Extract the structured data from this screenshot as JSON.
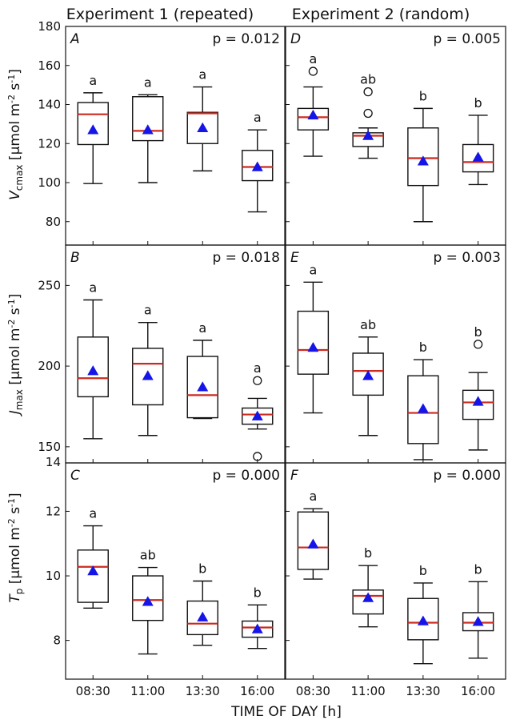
{
  "column_titles": [
    "Experiment 1 (repeated)",
    "Experiment 2 (random)"
  ],
  "x_axis_label": "TIME OF DAY [h]",
  "colors": {
    "median": "#cc2a1f",
    "mean_marker": "#1515e8",
    "box": "#111111"
  },
  "chart_data": [
    {
      "type": "box",
      "panel": "A",
      "experiment": "Experiment 1 (repeated)",
      "p_label": "p = 0.012",
      "ylabel": "Vcmax [μmol m-2 s-1]",
      "ylim": [
        68,
        180
      ],
      "yticks": [
        80,
        100,
        120,
        140,
        160,
        180
      ],
      "categories": [
        "08:30",
        "11:00",
        "13:30",
        "16:00"
      ],
      "boxes": [
        {
          "min": 99.5,
          "q1": 119.5,
          "median": 135,
          "q3": 141,
          "max": 146,
          "mean": 127,
          "outliers": [],
          "letter": "a"
        },
        {
          "min": 100,
          "q1": 121.5,
          "median": 126.5,
          "q3": 144,
          "max": 145,
          "mean": 127,
          "outliers": [],
          "letter": "a"
        },
        {
          "min": 106,
          "q1": 120,
          "median": 135.5,
          "q3": 136,
          "max": 149,
          "mean": 128,
          "outliers": [],
          "letter": "a"
        },
        {
          "min": 85,
          "q1": 101,
          "median": 108,
          "q3": 116.5,
          "max": 127,
          "mean": 108,
          "outliers": [],
          "letter": "a"
        }
      ]
    },
    {
      "type": "box",
      "panel": "D",
      "experiment": "Experiment 2 (random)",
      "p_label": "p = 0.005",
      "ylabel": "Vcmax [μmol m-2 s-1]",
      "ylim": [
        68,
        180
      ],
      "yticks": [
        80,
        100,
        120,
        140,
        160,
        180
      ],
      "categories": [
        "08:30",
        "11:00",
        "13:30",
        "16:00"
      ],
      "boxes": [
        {
          "min": 113.5,
          "q1": 127,
          "median": 133.5,
          "q3": 138,
          "max": 149,
          "mean": 134.5,
          "outliers": [
            157
          ],
          "letter": "a"
        },
        {
          "min": 112.5,
          "q1": 118.5,
          "median": 124,
          "q3": 125.5,
          "max": 128,
          "mean": 124,
          "outliers": [
            146.5,
            135.5
          ],
          "letter": "ab"
        },
        {
          "min": 80,
          "q1": 98.5,
          "median": 112.5,
          "q3": 128,
          "max": 138,
          "mean": 111,
          "outliers": [],
          "letter": "b"
        },
        {
          "min": 99,
          "q1": 105.5,
          "median": 110.5,
          "q3": 119.5,
          "max": 134.5,
          "mean": 113,
          "outliers": [],
          "letter": "b"
        }
      ]
    },
    {
      "type": "box",
      "panel": "B",
      "experiment": "Experiment 1 (repeated)",
      "p_label": "p = 0.018",
      "ylabel": "Jmax [μmol m-2 s-1]",
      "ylim": [
        140,
        275
      ],
      "yticks": [
        150,
        200,
        250
      ],
      "extra_tick_label": "14",
      "categories": [
        "08:30",
        "11:00",
        "13:30",
        "16:00"
      ],
      "boxes": [
        {
          "min": 155,
          "q1": 181,
          "median": 192.5,
          "q3": 218,
          "max": 241,
          "mean": 197,
          "outliers": [],
          "letter": "a"
        },
        {
          "min": 157,
          "q1": 176,
          "median": 201.5,
          "q3": 211,
          "max": 227,
          "mean": 194,
          "outliers": [],
          "letter": "a"
        },
        {
          "min": 167.5,
          "q1": 168,
          "median": 182,
          "q3": 206,
          "max": 216,
          "mean": 187,
          "outliers": [],
          "letter": "a"
        },
        {
          "min": 161,
          "q1": 164,
          "median": 170,
          "q3": 174,
          "max": 180,
          "mean": 169,
          "outliers": [
            191,
            144
          ],
          "letter": "a"
        }
      ]
    },
    {
      "type": "box",
      "panel": "E",
      "experiment": "Experiment 2 (random)",
      "p_label": "p = 0.003",
      "ylabel": "Jmax [μmol m-2 s-1]",
      "ylim": [
        140,
        275
      ],
      "yticks": [
        150,
        200,
        250
      ],
      "categories": [
        "08:30",
        "11:00",
        "13:30",
        "16:00"
      ],
      "boxes": [
        {
          "min": 171,
          "q1": 195,
          "median": 210,
          "q3": 234,
          "max": 252,
          "mean": 211.5,
          "outliers": [],
          "letter": "a"
        },
        {
          "min": 157,
          "q1": 182,
          "median": 197,
          "q3": 208,
          "max": 218,
          "mean": 194,
          "outliers": [],
          "letter": "ab"
        },
        {
          "min": 142,
          "q1": 152,
          "median": 171,
          "q3": 194,
          "max": 204,
          "mean": 173.5,
          "outliers": [],
          "letter": "b"
        },
        {
          "min": 148,
          "q1": 167,
          "median": 177.5,
          "q3": 185,
          "max": 196,
          "mean": 178,
          "outliers": [
            213.5
          ],
          "letter": "b"
        }
      ]
    },
    {
      "type": "box",
      "panel": "C",
      "experiment": "Experiment 1 (repeated)",
      "p_label": "p = 0.000",
      "ylabel": "Tp [μmol m-2 s-1]",
      "ylim": [
        6.8,
        13.5
      ],
      "yticks": [
        8,
        10,
        12
      ],
      "categories": [
        "08:30",
        "11:00",
        "13:30",
        "16:00"
      ],
      "boxes": [
        {
          "min": 9.0,
          "q1": 9.18,
          "median": 10.28,
          "q3": 10.8,
          "max": 11.55,
          "mean": 10.15,
          "outliers": [],
          "letter": "a"
        },
        {
          "min": 7.58,
          "q1": 8.62,
          "median": 9.25,
          "q3": 10.0,
          "max": 10.26,
          "mean": 9.2,
          "outliers": [],
          "letter": "ab"
        },
        {
          "min": 7.85,
          "q1": 8.18,
          "median": 8.52,
          "q3": 9.22,
          "max": 9.84,
          "mean": 8.72,
          "outliers": [],
          "letter": "b"
        },
        {
          "min": 7.75,
          "q1": 8.1,
          "median": 8.4,
          "q3": 8.6,
          "max": 9.1,
          "mean": 8.35,
          "outliers": [],
          "letter": "b"
        }
      ]
    },
    {
      "type": "box",
      "panel": "F",
      "experiment": "Experiment 2 (random)",
      "p_label": "p = 0.000",
      "ylabel": "Tp [μmol m-2 s-1]",
      "ylim": [
        6.8,
        13.5
      ],
      "yticks": [
        8,
        10,
        12
      ],
      "categories": [
        "08:30",
        "11:00",
        "13:30",
        "16:00"
      ],
      "boxes": [
        {
          "min": 9.9,
          "q1": 10.2,
          "median": 10.88,
          "q3": 11.98,
          "max": 12.08,
          "mean": 10.98,
          "outliers": [],
          "letter": "a"
        },
        {
          "min": 8.42,
          "q1": 8.82,
          "median": 9.38,
          "q3": 9.56,
          "max": 10.32,
          "mean": 9.32,
          "outliers": [],
          "letter": "b"
        },
        {
          "min": 7.28,
          "q1": 8.02,
          "median": 8.55,
          "q3": 9.3,
          "max": 9.78,
          "mean": 8.6,
          "outliers": [],
          "letter": "b"
        },
        {
          "min": 7.45,
          "q1": 8.3,
          "median": 8.55,
          "q3": 8.86,
          "max": 9.82,
          "mean": 8.58,
          "outliers": [],
          "letter": "b"
        }
      ]
    }
  ]
}
